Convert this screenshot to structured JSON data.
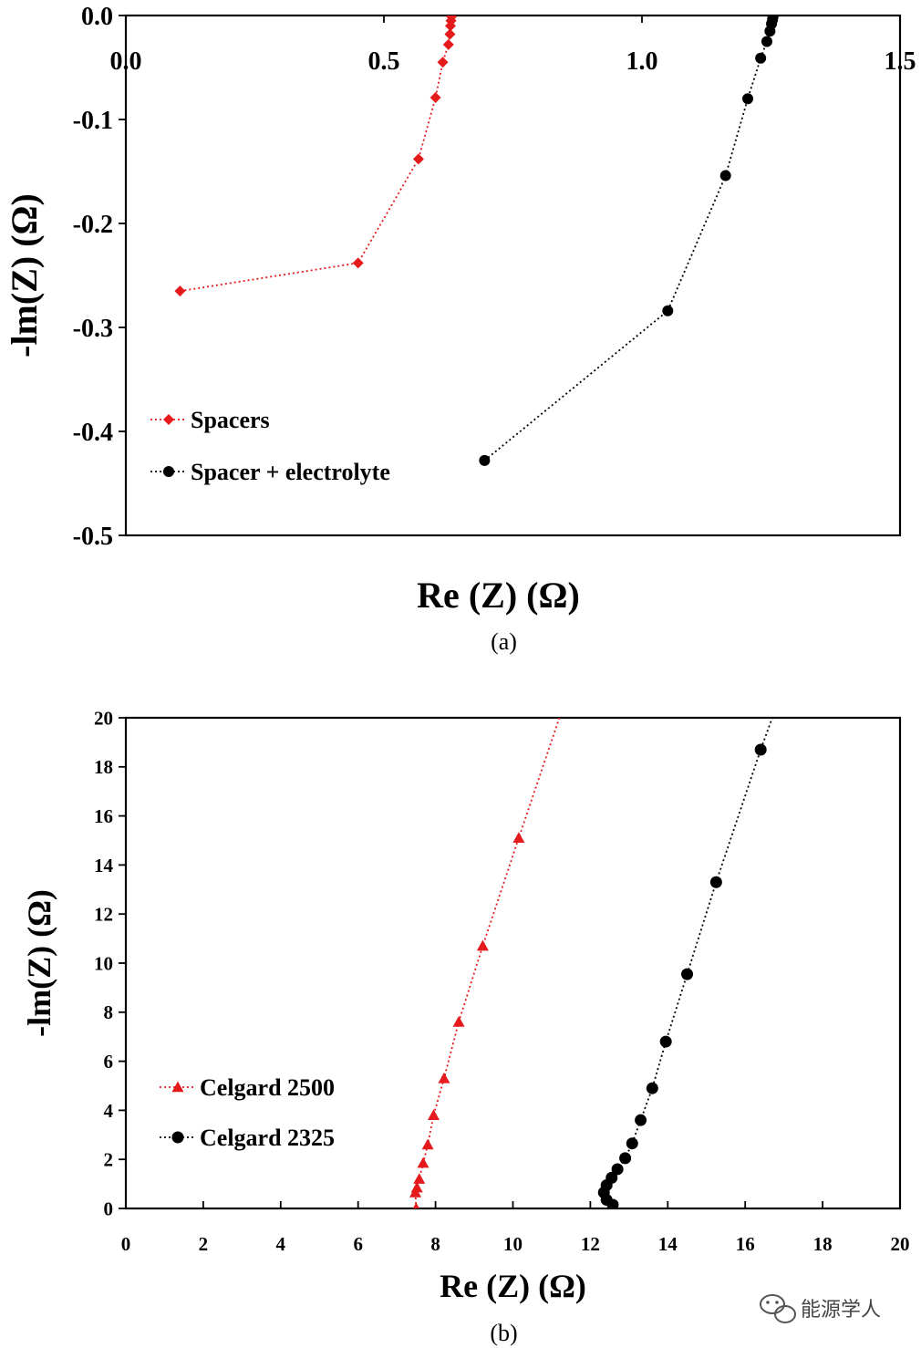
{
  "chart_data": [
    {
      "type": "scatter",
      "panel_label": "(a)",
      "xlabel": "Re (Z) (Ω)",
      "ylabel": "-lm(Z) (Ω)",
      "xlim": [
        0.0,
        1.5
      ],
      "ylim": [
        -0.5,
        0.0
      ],
      "x_ticks": [
        "0.0",
        "0.5",
        "1.0",
        "1.5"
      ],
      "y_ticks": [
        "0.0",
        "-0.1",
        "-0.2",
        "-0.3",
        "-0.4",
        "-0.5"
      ],
      "x_tick_position": "top",
      "grid": false,
      "legend_position": "bottom-left",
      "series": [
        {
          "name": "Spacers",
          "color": "#e41a1c",
          "marker": "diamond",
          "line": "dotted",
          "x": [
            0.105,
            0.45,
            0.567,
            0.6,
            0.614,
            0.625,
            0.628,
            0.629,
            0.63,
            0.631
          ],
          "y": [
            -0.265,
            -0.238,
            -0.138,
            -0.079,
            -0.045,
            -0.028,
            -0.018,
            -0.01,
            -0.005,
            -0.001
          ]
        },
        {
          "name": "Spacer + electrolyte",
          "color": "#000000",
          "marker": "circle",
          "line": "dotted",
          "x": [
            0.695,
            1.05,
            1.162,
            1.205,
            1.23,
            1.242,
            1.248,
            1.251,
            1.253,
            1.254
          ],
          "y": [
            -0.428,
            -0.284,
            -0.154,
            -0.08,
            -0.041,
            -0.025,
            -0.015,
            -0.008,
            -0.004,
            -0.001
          ]
        }
      ]
    },
    {
      "type": "scatter",
      "panel_label": "(b)",
      "xlabel": "Re (Z) (Ω)",
      "ylabel": "-lm(Z) (Ω)",
      "xlim": [
        0,
        20
      ],
      "ylim": [
        0,
        20
      ],
      "x_ticks": [
        "0",
        "2",
        "4",
        "6",
        "8",
        "10",
        "12",
        "14",
        "16",
        "18",
        "20"
      ],
      "y_ticks": [
        "0",
        "2",
        "4",
        "6",
        "8",
        "10",
        "12",
        "14",
        "16",
        "18",
        "20"
      ],
      "x_tick_position": "bottom",
      "grid": false,
      "legend_position": "bottom-left",
      "series": [
        {
          "name": "Celgard 2500",
          "color": "#e41a1c",
          "marker": "triangle",
          "line": "dotted",
          "x": [
            7.5,
            7.48,
            7.52,
            7.58,
            7.68,
            7.8,
            7.95,
            8.22,
            8.6,
            9.22,
            10.15,
            11.2
          ],
          "y": [
            0.0,
            0.65,
            0.85,
            1.2,
            1.85,
            2.6,
            3.8,
            5.3,
            7.6,
            10.7,
            15.1,
            20.0
          ],
          "extends_beyond_plot": true
        },
        {
          "name": "Celgard 2325",
          "color": "#000000",
          "marker": "circle",
          "line": "dotted",
          "x": [
            12.58,
            12.42,
            12.35,
            12.42,
            12.55,
            12.7,
            12.9,
            13.08,
            13.3,
            13.6,
            13.95,
            14.5,
            15.25,
            16.4,
            16.7
          ],
          "y": [
            0.15,
            0.35,
            0.65,
            0.95,
            1.25,
            1.6,
            2.05,
            2.65,
            3.6,
            4.9,
            6.8,
            9.55,
            13.3,
            18.7,
            20.0
          ],
          "extends_beyond_plot": true
        }
      ]
    }
  ],
  "watermark": {
    "text": "能源学人",
    "icon": "wechat-icon"
  }
}
